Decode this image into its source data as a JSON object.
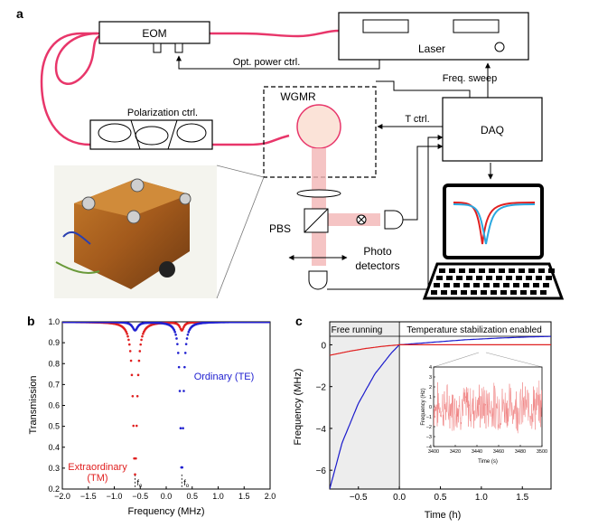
{
  "panel_a": {
    "label": "a",
    "labels": {
      "eom": "EOM",
      "laser": "Laser",
      "opt_power": "Opt. power ctrl.",
      "freq_sweep": "Freq. sweep",
      "polarization": "Polarization ctrl.",
      "wgmr": "WGMR",
      "t_ctrl": "T ctrl.",
      "daq": "DAQ",
      "pbs": "PBS",
      "photo1": "Photo",
      "photo2": "detectors"
    },
    "colors": {
      "fiber": "#e8366a",
      "beam": "#f2b5b5",
      "resonator": "#fbe3d8",
      "photo": "#b06a2e"
    }
  },
  "chart_data": [
    {
      "panel": "b",
      "type": "scatter",
      "xlabel": "Frequency (MHz)",
      "ylabel": "Transmission",
      "xlim": [
        -2.0,
        2.0
      ],
      "ylim": [
        0.2,
        1.0
      ],
      "xticks": [
        "-2.0",
        "-1.5",
        "-1.0",
        "-0.5",
        "0.0",
        "0.5",
        "1.0",
        "1.5",
        "2.0"
      ],
      "yticks": [
        "0.2",
        "0.3",
        "0.4",
        "0.5",
        "0.6",
        "0.7",
        "0.8",
        "0.9",
        "1.0"
      ],
      "annotations": [
        {
          "text": "Extraordinary",
          "color": "#e02020"
        },
        {
          "text": "(TM)",
          "color": "#e02020"
        },
        {
          "text": "Ordinary (TE)",
          "color": "#2020d0"
        },
        {
          "text": "f",
          "sub": "e"
        },
        {
          "text": "f",
          "sub": "o"
        }
      ],
      "series": [
        {
          "color": "#e02020",
          "baseline": 1.0,
          "dips": [
            {
              "center": -0.6,
              "depth": 0.73,
              "width": 0.09
            },
            {
              "center": 0.3,
              "depth": 0.04,
              "width": 0.09
            }
          ]
        },
        {
          "color": "#2020d0",
          "baseline": 1.0,
          "dips": [
            {
              "center": 0.3,
              "depth": 0.73,
              "width": 0.07
            },
            {
              "center": -0.6,
              "depth": 0.04,
              "width": 0.12
            }
          ]
        }
      ]
    },
    {
      "panel": "c",
      "type": "line",
      "xlabel": "Time (h)",
      "ylabel": "Frequency (MHz)",
      "xlim": [
        -0.85,
        1.85
      ],
      "ylim": [
        -6.9,
        1.1
      ],
      "xticks": [
        "-0.5",
        "0.0",
        "0.5",
        "1.0",
        "1.5"
      ],
      "yticks": [
        "-6",
        "-4",
        "-2",
        "0"
      ],
      "regions": [
        "Free running",
        "Temperature stabilization enabled"
      ],
      "series": [
        {
          "color": "#1a1acc",
          "x": [
            -0.85,
            -0.7,
            -0.5,
            -0.3,
            -0.1,
            0.0,
            0.4,
            0.8,
            1.2,
            1.6,
            1.85
          ],
          "y": [
            -6.9,
            -4.7,
            -2.8,
            -1.4,
            -0.4,
            0.0,
            0.12,
            0.24,
            0.32,
            0.38,
            0.4
          ]
        },
        {
          "color": "#e02020",
          "x": [
            -0.85,
            -0.6,
            -0.4,
            -0.2,
            0.0,
            1.85
          ],
          "y": [
            -0.5,
            -0.3,
            -0.17,
            -0.07,
            0.0,
            0.0
          ]
        }
      ],
      "inset": {
        "xlabel": "Time (s)",
        "ylabel": "Frequency (Hz)",
        "xlim": [
          3400,
          3500
        ],
        "ylim": [
          -4,
          4
        ],
        "xticks": [
          "3400",
          "3420",
          "3440",
          "3460",
          "3480",
          "3500"
        ],
        "yticks": [
          "-4",
          "-3",
          "-2",
          "-1",
          "0",
          "1",
          "2",
          "3",
          "4"
        ],
        "color": "#f08080"
      }
    }
  ]
}
